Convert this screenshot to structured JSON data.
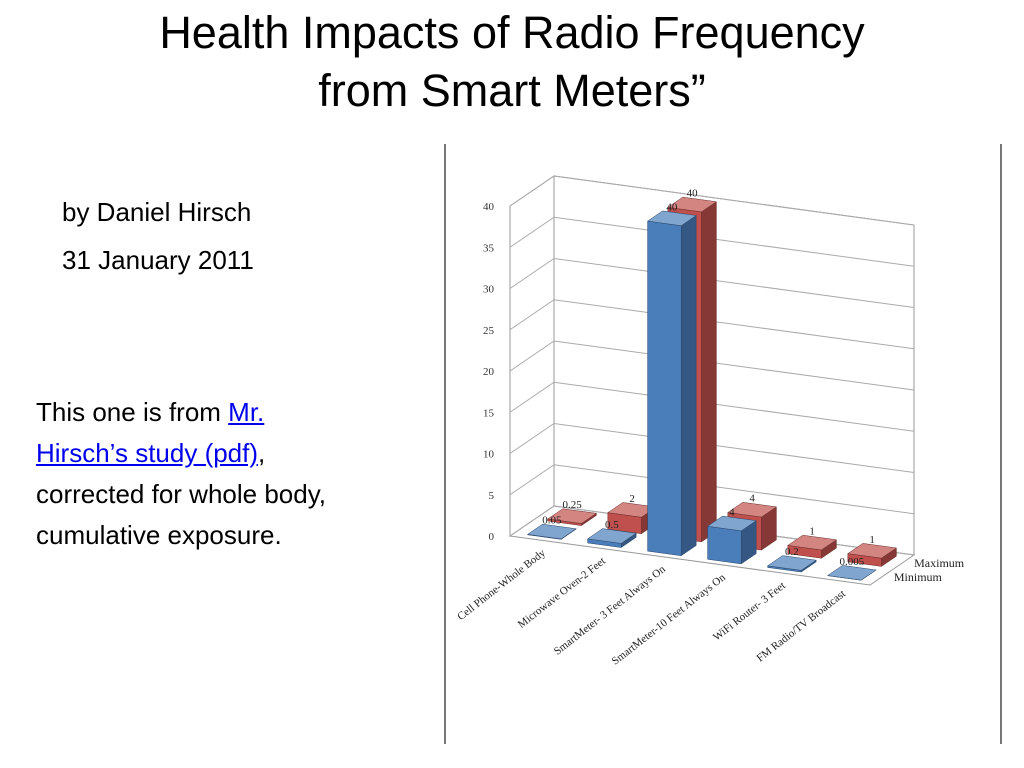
{
  "slide": {
    "title_line1": "Health Impacts of Radio Frequency",
    "title_line2": "from Smart Meters”",
    "author": "by Daniel Hirsch",
    "date": "31 January 2011",
    "note_prefix": "This one is from ",
    "note_link_line1": "Mr.",
    "note_link_line2": "Hirsch’s study (pdf)",
    "note_suffix_line1": ",",
    "note_suffix_line2": "corrected for whole body,",
    "note_suffix_line3": "cumulative exposure."
  },
  "chart_data": {
    "type": "bar",
    "categories": [
      "Cell Phone-Whole Body",
      "Microwave Oven-2 Feet",
      "SmartMeter- 3 Feet Always On",
      "SmartMeter-10 Feet Always On",
      "WiFi Router- 3 Feet",
      "FM Radio/TV Broadcast"
    ],
    "series": [
      {
        "name": "Minimum",
        "values": [
          0.05,
          0.5,
          40,
          4,
          0.2,
          0.005
        ],
        "color": "#4a7ebb"
      },
      {
        "name": "Maximum",
        "values": [
          0.25,
          2,
          40,
          4,
          1,
          1
        ],
        "color": "#c0504d"
      }
    ],
    "value_labels": {
      "Minimum": [
        "0.05",
        "0.5",
        "40",
        "4",
        "0.2",
        "0.005"
      ],
      "Maximum": [
        "0.25",
        "2",
        "40",
        "4",
        "1",
        "1"
      ]
    },
    "y_ticks": [
      "0",
      "5",
      "10",
      "15",
      "20",
      "25",
      "30",
      "35",
      "40"
    ],
    "ylim": [
      0,
      40
    ],
    "grid": true,
    "legend": "right",
    "style": "3d-clustered-column"
  }
}
